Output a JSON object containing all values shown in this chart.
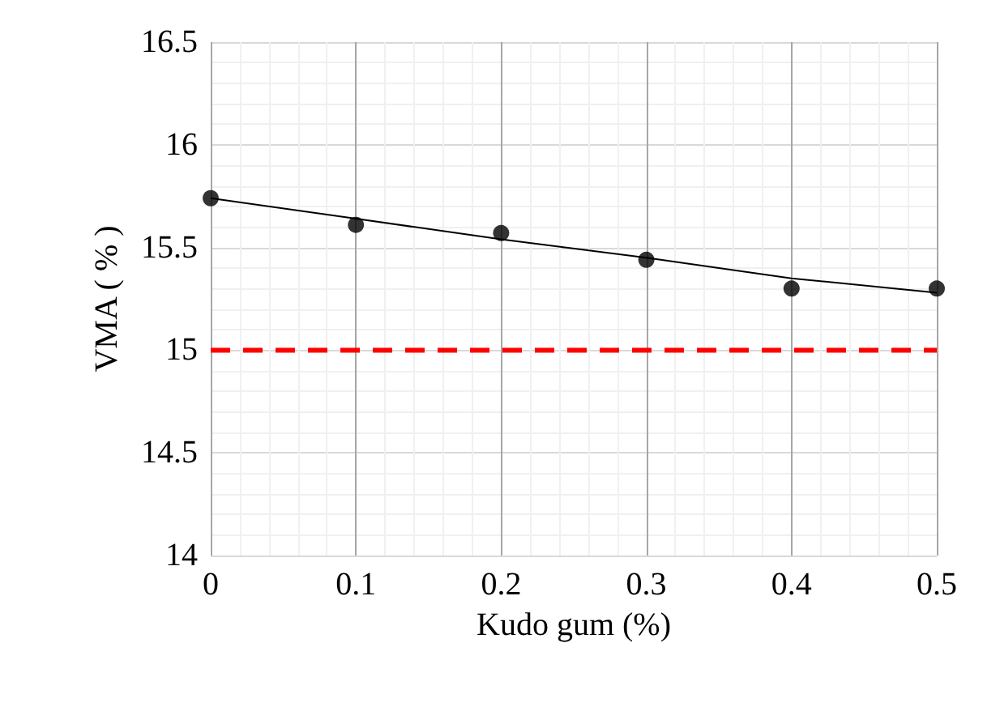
{
  "chart_data": {
    "type": "scatter",
    "xlabel": "Kudo gum (%)",
    "ylabel": "VMA ( % )",
    "series": [
      {
        "color": "#000000",
        "marker": "circle",
        "x": [
          0,
          0.1,
          0.2,
          0.3,
          0.4,
          0.5
        ],
        "values": [
          15.74,
          15.61,
          15.57,
          15.44,
          15.3,
          15.3
        ]
      },
      {
        "type": "line",
        "color": "#000000",
        "marker": "none",
        "x": [
          0,
          0.1,
          0.2,
          0.3,
          0.4,
          0.5
        ],
        "values": [
          15.74,
          15.64,
          15.54,
          15.45,
          15.35,
          15.28
        ]
      }
    ],
    "xlim": [
      0,
      0.5
    ],
    "xticks": [
      0,
      0.1,
      0.2,
      0.3,
      0.4,
      0.5
    ],
    "ylim": [
      14,
      16.5
    ],
    "yticks": [
      14,
      14.5,
      15,
      15.5,
      16,
      16.5
    ],
    "grid": true,
    "ref_lines": [
      {
        "axis": "y",
        "value": 15,
        "color": "#ff0000",
        "line_style": "dashed"
      }
    ]
  }
}
